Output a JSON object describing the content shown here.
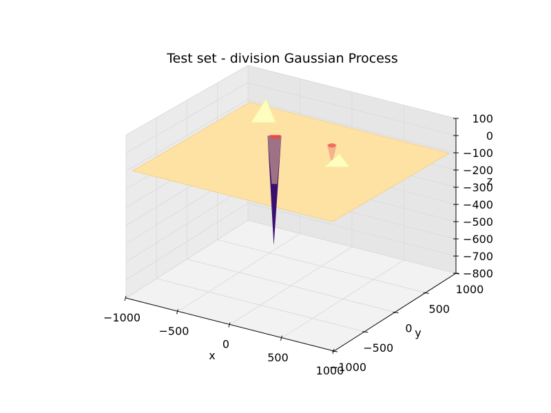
{
  "chart_data": {
    "type": "surface3d",
    "title": "Test set - division Gaussian Process",
    "xlabel": "x",
    "ylabel": "y",
    "zlabel": "z",
    "xlim": [
      -1000,
      1000
    ],
    "ylim": [
      -1000,
      1000
    ],
    "zlim": [
      -800,
      100
    ],
    "x_ticks": [
      "−1000",
      "−500",
      "0",
      "500",
      "1000"
    ],
    "y_ticks": [
      "−1000",
      "−500",
      "0",
      "500",
      "1000"
    ],
    "z_ticks": [
      "100",
      "0",
      "−100",
      "−200",
      "−300",
      "−400",
      "−500",
      "−600",
      "−700",
      "−800"
    ],
    "grid": true,
    "colormap": "magma",
    "surface_base_z": -100,
    "features": [
      {
        "kind": "spike",
        "x": -400,
        "y": 400,
        "z": -720
      },
      {
        "kind": "peak",
        "x": -650,
        "y": 700,
        "z": 20
      },
      {
        "kind": "dip",
        "x": 100,
        "y": 500,
        "z": -200
      },
      {
        "kind": "peak",
        "x": 350,
        "y": 200,
        "z": -40
      }
    ],
    "colors": {
      "surface": "#fde2a4",
      "surface_edge": "#f7cf8f",
      "spike": "#3b0f70",
      "peak": "#fcfdbf",
      "dip": "#f06e5b",
      "pane": "#f2f2f2",
      "grid": "#e6e6e6"
    }
  }
}
